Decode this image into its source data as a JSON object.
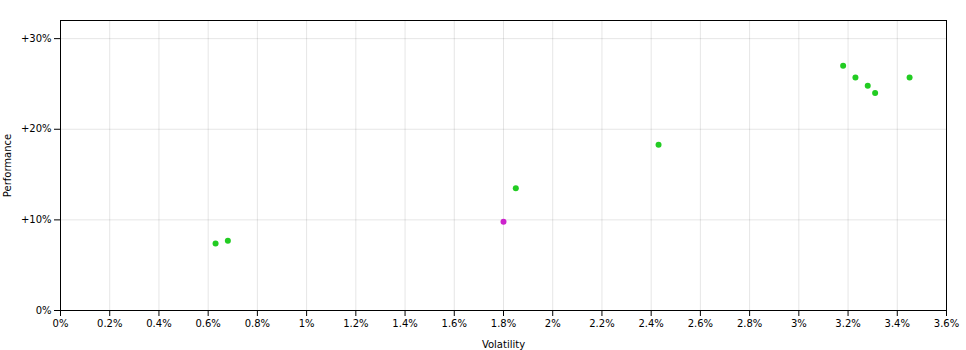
{
  "chart_data": {
    "type": "scatter",
    "xlabel": "Volatility",
    "ylabel": "Performance",
    "xlim": [
      0.0,
      0.036
    ],
    "ylim": [
      0.0,
      0.32
    ],
    "xticks": [
      {
        "value": 0.0,
        "label": "0%"
      },
      {
        "value": 0.002,
        "label": "0.2%"
      },
      {
        "value": 0.004,
        "label": "0.4%"
      },
      {
        "value": 0.006,
        "label": "0.6%"
      },
      {
        "value": 0.008,
        "label": "0.8%"
      },
      {
        "value": 0.01,
        "label": "1%"
      },
      {
        "value": 0.012,
        "label": "1.2%"
      },
      {
        "value": 0.014,
        "label": "1.4%"
      },
      {
        "value": 0.016,
        "label": "1.6%"
      },
      {
        "value": 0.018,
        "label": "1.8%"
      },
      {
        "value": 0.02,
        "label": "2%"
      },
      {
        "value": 0.022,
        "label": "2.2%"
      },
      {
        "value": 0.024,
        "label": "2.4%"
      },
      {
        "value": 0.026,
        "label": "2.6%"
      },
      {
        "value": 0.028,
        "label": "2.8%"
      },
      {
        "value": 0.03,
        "label": "3%"
      },
      {
        "value": 0.032,
        "label": "3.2%"
      },
      {
        "value": 0.034,
        "label": "3.4%"
      },
      {
        "value": 0.036,
        "label": "3.6%"
      }
    ],
    "yticks": [
      {
        "value": 0.0,
        "label": "0%"
      },
      {
        "value": 0.1,
        "label": "+10%"
      },
      {
        "value": 0.2,
        "label": "+20%"
      },
      {
        "value": 0.3,
        "label": "+30%"
      }
    ],
    "grid": true,
    "series": [
      {
        "color": "#22cc22",
        "x": [
          0.0063,
          0.0068,
          0.0185,
          0.0243,
          0.0318,
          0.0323,
          0.0328,
          0.0331,
          0.0345
        ],
        "values": [
          0.074,
          0.077,
          0.135,
          0.183,
          0.27,
          0.257,
          0.248,
          0.24,
          0.257
        ]
      },
      {
        "color": "#cc22cc",
        "x": [
          0.018
        ],
        "values": [
          0.098
        ]
      }
    ]
  }
}
